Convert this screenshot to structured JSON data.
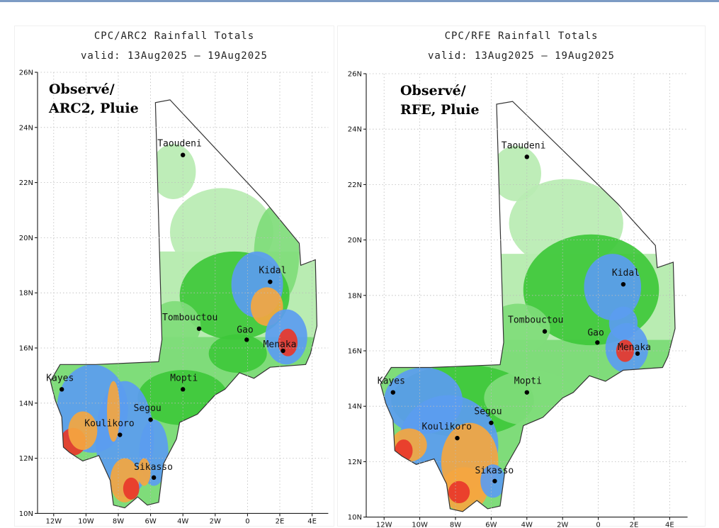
{
  "panels": [
    {
      "title": "CPC/ARC2 Rainfall Totals",
      "valid": "valid: 13Aug2025 — 19Aug2025",
      "label_line1": "Observé/",
      "label_line2": "ARC2, Pluie"
    },
    {
      "title": "CPC/RFE Rainfall Totals",
      "valid": "valid: 13Aug2025 — 19Aug2025",
      "label_line1": "Observé/",
      "label_line2": "RFE, Pluie"
    }
  ],
  "lat_ticks": [
    "26N",
    "24N",
    "22N",
    "20N",
    "18N",
    "16N",
    "14N",
    "12N",
    "10N"
  ],
  "lon_ticks": [
    "12W",
    "10W",
    "8W",
    "6W",
    "4W",
    "2W",
    "0",
    "2E",
    "4E"
  ],
  "cities": [
    "Taoudeni",
    "Kidal",
    "Tombouctou",
    "Gao",
    "Menaka",
    "Kayes",
    "Mopti",
    "Segou",
    "Koulikoro",
    "Sikasso"
  ],
  "colors": {
    "light_green": "#b9ecb2",
    "mid_green": "#7fdc7a",
    "green": "#3ec83a",
    "blue": "#5b9cf0",
    "orange": "#f4a640",
    "red": "#e8372a"
  }
}
